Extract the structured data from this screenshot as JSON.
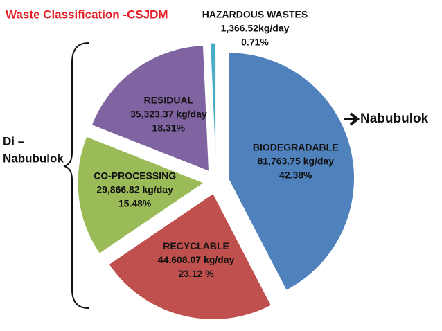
{
  "chart_data": {
    "type": "pie",
    "title": "Waste Classification -CSJDM",
    "categories": [
      "BIODEGRADABLE",
      "RECYCLABLE",
      "CO-PROCESSING",
      "RESIDUAL",
      "HAZARDOUS WASTES"
    ],
    "values": [
      42.38,
      23.12,
      15.48,
      18.31,
      0.71
    ],
    "value_labels": [
      "42.38%",
      "23.12 %",
      "15.48%",
      "18.31%",
      "0.71%"
    ],
    "weight_labels": [
      "81,763.75 kg/day",
      "44,608.07 kg/day",
      "29,866.82 kg/day",
      "35,323.37 kg/day",
      "1,366.52kg/day"
    ],
    "colors": [
      "#4f81bd",
      "#c0504d",
      "#9bbb59",
      "#8064a2",
      "#4bacc6"
    ],
    "annotations": {
      "right": "Nabubulok",
      "left": [
        "Di –",
        "Nabubulok"
      ]
    }
  }
}
